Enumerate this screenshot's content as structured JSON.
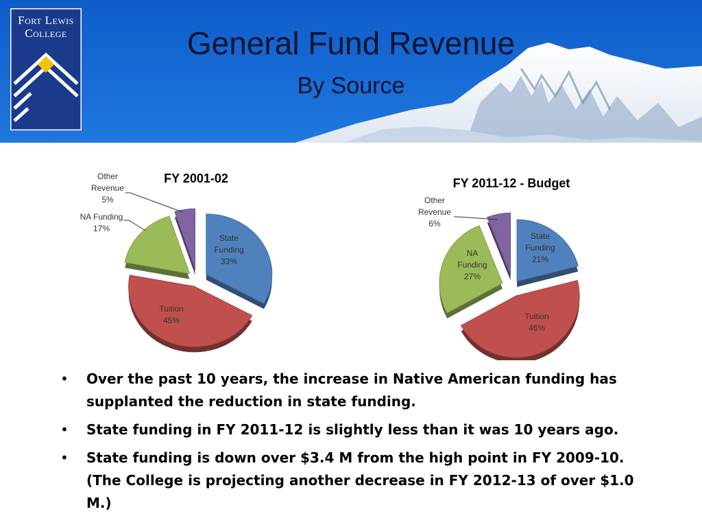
{
  "header": {
    "logo_text": "Fort Lewis College",
    "title": "General Fund Revenue",
    "subtitle": "By Source"
  },
  "colors": {
    "banner_blue": "#1565d0",
    "state": "#4f81bd",
    "tuition": "#c0504d",
    "na": "#9bbb59",
    "other": "#8064a2"
  },
  "chart_data": [
    {
      "type": "pie",
      "title": "FY 2001-02",
      "slices": [
        {
          "label": "State Funding",
          "value": 33,
          "text": "33%",
          "color": "#4f81bd"
        },
        {
          "label": "Tuition",
          "value": 45,
          "text": "45%",
          "color": "#c0504d"
        },
        {
          "label": "NA Funding",
          "value": 17,
          "text": "17%",
          "color": "#9bbb59"
        },
        {
          "label": "Other Revenue",
          "value": 5,
          "text": "5%",
          "color": "#8064a2"
        }
      ]
    },
    {
      "type": "pie",
      "title": "FY 2011-12 - Budget",
      "slices": [
        {
          "label": "State Funding",
          "value": 21,
          "text": "21%",
          "color": "#4f81bd"
        },
        {
          "label": "Tuition",
          "value": 46,
          "text": "46%",
          "color": "#c0504d"
        },
        {
          "label": "NA Funding",
          "value": 27,
          "text": "27%",
          "color": "#9bbb59"
        },
        {
          "label": "Other Revenue",
          "value": 6,
          "text": "6%",
          "color": "#8064a2"
        }
      ]
    }
  ],
  "bullets": [
    "Over the past 10 years, the increase in Native American funding has supplanted the reduction in state funding.",
    "State funding in FY 2011-12 is slightly less than it was 10 years ago.",
    "State funding is down over $3.4 M from the high point in FY 2009-10. (The College is projecting another decrease in FY 2012-13 of over $1.0 M.)"
  ],
  "bullet_char": "•"
}
